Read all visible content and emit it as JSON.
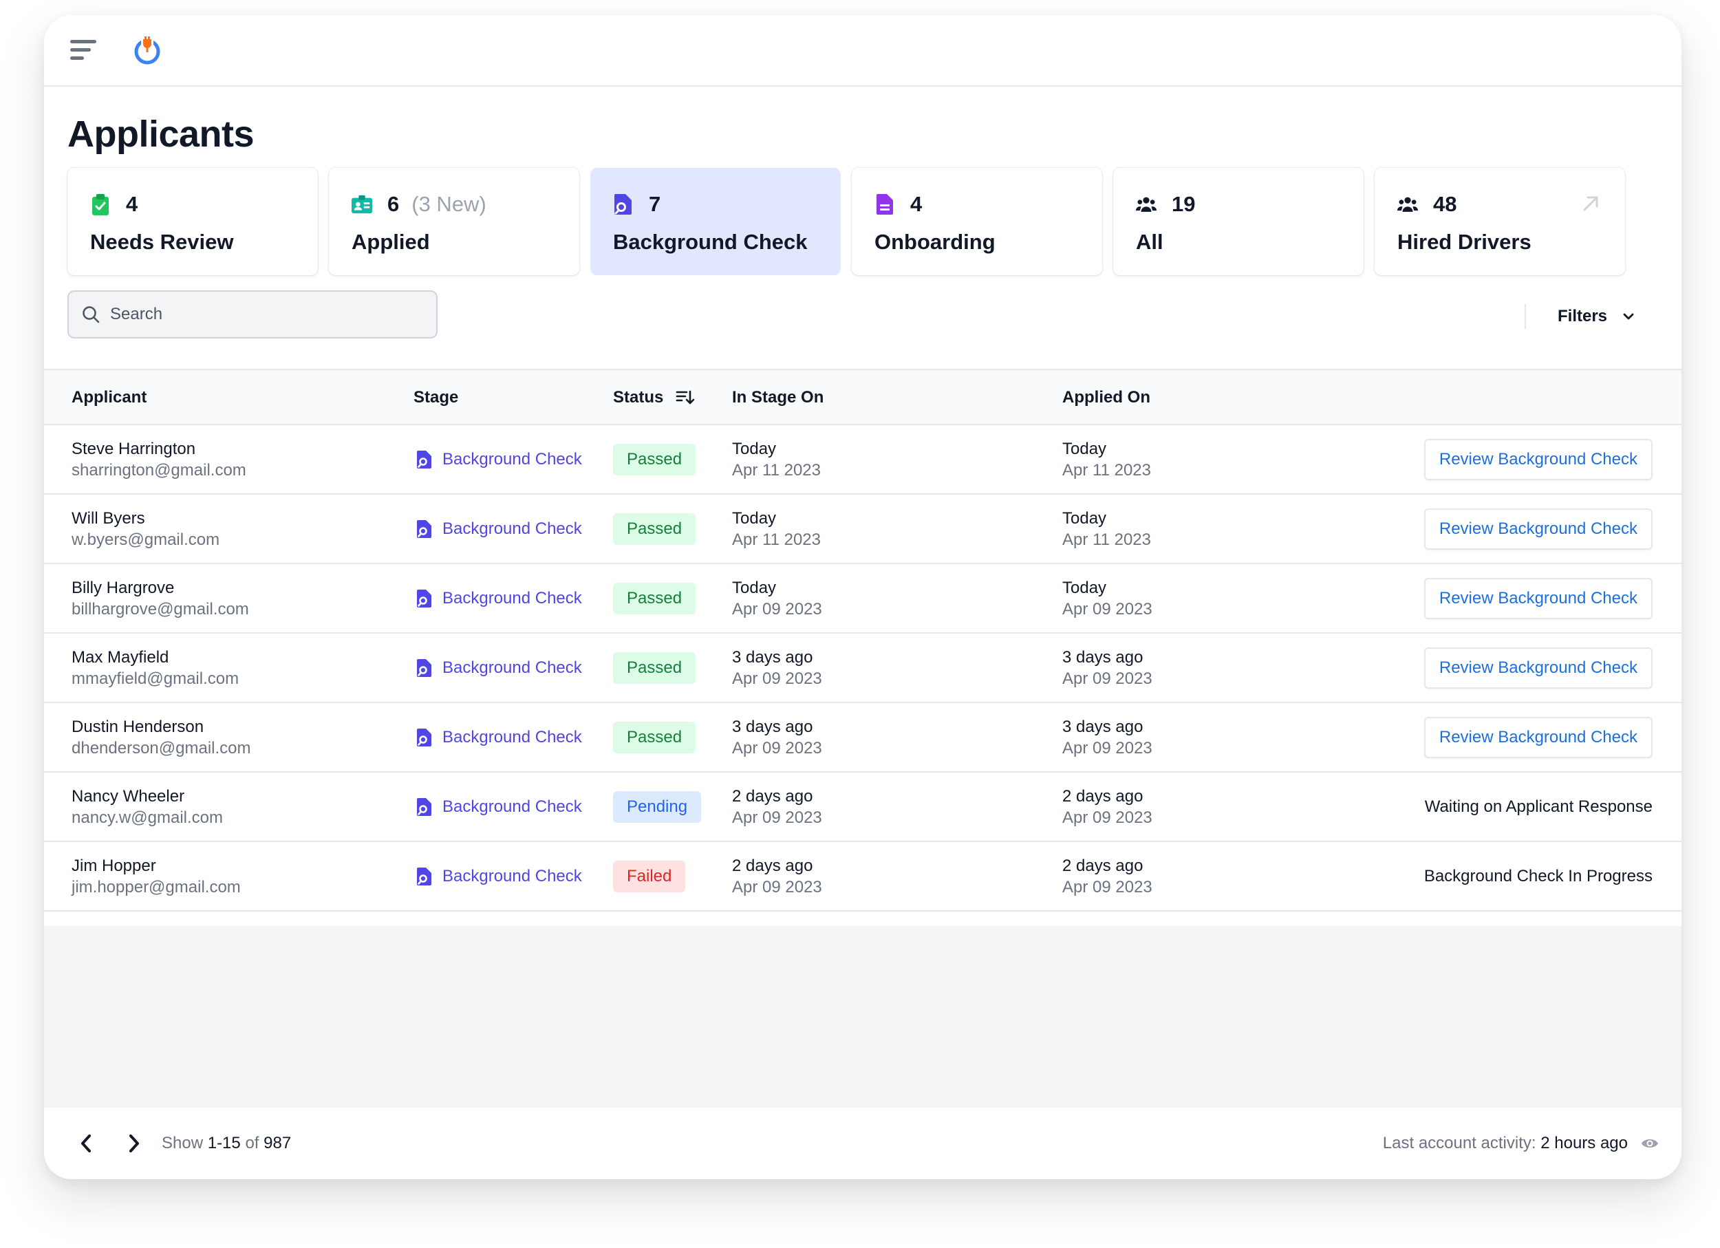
{
  "app": {
    "title": "Applicants"
  },
  "search": {
    "placeholder": "Search"
  },
  "filters": {
    "label": "Filters"
  },
  "stage_cards": [
    {
      "icon": "clipboard-check-icon",
      "count": "4",
      "extra": "",
      "label": "Needs Review",
      "color": "#22c55e"
    },
    {
      "icon": "id-card-icon",
      "count": "6",
      "extra": "(3 New)",
      "label": "Applied",
      "color": "#14b8a6"
    },
    {
      "icon": "search-document-icon",
      "count": "7",
      "extra": "",
      "label": "Background Check",
      "color": "#4f46e5",
      "active": true
    },
    {
      "icon": "document-icon",
      "count": "4",
      "extra": "",
      "label": "Onboarding",
      "color": "#9333ea"
    },
    {
      "icon": "users-icon",
      "count": "19",
      "extra": "",
      "label": "All",
      "color": "#111827"
    },
    {
      "icon": "users-icon",
      "count": "48",
      "extra": "",
      "label": "Hired Drivers",
      "color": "#111827"
    }
  ],
  "table": {
    "headers": {
      "applicant": "Applicant",
      "stage": "Stage",
      "status": "Status",
      "in_stage_on": "In Stage On",
      "applied_on": "Applied On"
    },
    "rows": [
      {
        "name": "Steve Harrington",
        "email": "sharrington@gmail.com",
        "stage": "Background Check",
        "status": "Passed",
        "status_kind": "passed",
        "stage_rel": "Today",
        "stage_date": "Apr 11 2023",
        "applied_rel": "Today",
        "applied_date": "Apr 11 2023",
        "action_type": "button",
        "action": "Review Background Check"
      },
      {
        "name": "Will Byers",
        "email": "w.byers@gmail.com",
        "stage": "Background Check",
        "status": "Passed",
        "status_kind": "passed",
        "stage_rel": "Today",
        "stage_date": "Apr 11 2023",
        "applied_rel": "Today",
        "applied_date": "Apr 11 2023",
        "action_type": "button",
        "action": "Review Background Check"
      },
      {
        "name": "Billy Hargrove",
        "email": "billhargrove@gmail.com",
        "stage": "Background Check",
        "status": "Passed",
        "status_kind": "passed",
        "stage_rel": "Today",
        "stage_date": "Apr 09 2023",
        "applied_rel": "Today",
        "applied_date": "Apr 09 2023",
        "action_type": "button",
        "action": "Review Background Check"
      },
      {
        "name": "Max Mayfield",
        "email": "mmayfield@gmail.com",
        "stage": "Background Check",
        "status": "Passed",
        "status_kind": "passed",
        "stage_rel": "3 days ago",
        "stage_date": "Apr 09 2023",
        "applied_rel": "3 days ago",
        "applied_date": "Apr 09 2023",
        "action_type": "button",
        "action": "Review Background Check"
      },
      {
        "name": "Dustin Henderson",
        "email": "dhenderson@gmail.com",
        "stage": "Background Check",
        "status": "Passed",
        "status_kind": "passed",
        "stage_rel": "3 days ago",
        "stage_date": "Apr 09 2023",
        "applied_rel": "3 days ago",
        "applied_date": "Apr 09 2023",
        "action_type": "button",
        "action": "Review Background Check"
      },
      {
        "name": "Nancy Wheeler",
        "email": "nancy.w@gmail.com",
        "stage": "Background Check",
        "status": "Pending",
        "status_kind": "pending",
        "stage_rel": "2 days ago",
        "stage_date": "Apr 09 2023",
        "applied_rel": "2 days ago",
        "applied_date": "Apr 09 2023",
        "action_type": "text",
        "action": "Waiting on Applicant Response"
      },
      {
        "name": "Jim Hopper",
        "email": "jim.hopper@gmail.com",
        "stage": "Background Check",
        "status": "Failed",
        "status_kind": "failed",
        "stage_rel": "2 days ago",
        "stage_date": "Apr 09 2023",
        "applied_rel": "2 days ago",
        "applied_date": "Apr 09 2023",
        "action_type": "text",
        "action": "Background Check In Progress"
      }
    ]
  },
  "pagination": {
    "show_label": "Show",
    "range": "1-15",
    "of_label": "of",
    "total": "987"
  },
  "activity": {
    "label": "Last account activity:",
    "value": "2 hours ago"
  },
  "colors": {
    "accent": "#4f46e5",
    "link": "#1d6fe0",
    "active_card": "#e0e7ff",
    "logo_ring": "#3b82f6",
    "logo_plug": "#f97316"
  }
}
